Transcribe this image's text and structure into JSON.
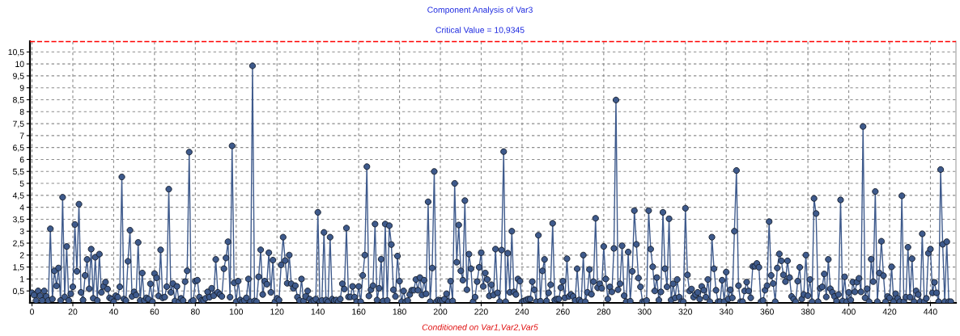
{
  "chart_data": {
    "type": "line",
    "title": "Component Analysis of Var3",
    "subtitle": "Critical Value = 10,9345",
    "annotations": [
      "Conditioned on Var1,Var2,Var5"
    ],
    "xlim": [
      -1,
      452.5
    ],
    "ylim": [
      0,
      10.95
    ],
    "xticks": [
      0,
      20,
      40,
      60,
      80,
      100,
      120,
      140,
      160,
      180,
      200,
      220,
      240,
      260,
      280,
      300,
      320,
      340,
      360,
      380,
      400,
      420,
      440
    ],
    "yticks": [
      {
        "value": 0.5,
        "label": "0,5"
      },
      1,
      {
        "value": 1.5,
        "label": "1,5"
      },
      2,
      {
        "value": 2.5,
        "label": "2,5"
      },
      3,
      {
        "value": 3.5,
        "label": "3,5"
      },
      4,
      {
        "value": 4.5,
        "label": "4,5"
      },
      5,
      {
        "value": 5.5,
        "label": "5,5"
      },
      6,
      {
        "value": 6.5,
        "label": "6,5"
      },
      7,
      {
        "value": 7.5,
        "label": "7,5"
      },
      8,
      {
        "value": 8.5,
        "label": "8,5"
      },
      9,
      {
        "value": 9.5,
        "label": "9,5"
      },
      10,
      {
        "value": 10.5,
        "label": "10,5"
      }
    ],
    "grid": true,
    "marker": "circle",
    "line_style": "solid",
    "ref_lines": [
      {
        "axis": "y",
        "value": 10.9345,
        "color": "#ff0000",
        "line_style": "dashed"
      }
    ],
    "series": [
      {
        "color": "#3e5a8c",
        "x": [
          0,
          1,
          2,
          3,
          4,
          5,
          6,
          7,
          8,
          9,
          10,
          11,
          12,
          13,
          14,
          15,
          16,
          17,
          18,
          19,
          20,
          21,
          22,
          23,
          24,
          25,
          26,
          27,
          28,
          29,
          30,
          31,
          32,
          33,
          34,
          35,
          36,
          37,
          38,
          39,
          40,
          41,
          42,
          43,
          44,
          45,
          46,
          47,
          48,
          49,
          50,
          51,
          52,
          53,
          54,
          55,
          56,
          57,
          58,
          59,
          60,
          61,
          62,
          63,
          64,
          65,
          66,
          67,
          68,
          69,
          70,
          71,
          72,
          73,
          74,
          75,
          76,
          77,
          78,
          79,
          80,
          81,
          82,
          83,
          84,
          85,
          86,
          87,
          88,
          89,
          90,
          91,
          92,
          93,
          94,
          95,
          96,
          97,
          98,
          99,
          100,
          101,
          102,
          103,
          104,
          105,
          106,
          107,
          108,
          109,
          110,
          111,
          112,
          113,
          114,
          115,
          116,
          117,
          118,
          119,
          120,
          121,
          122,
          123,
          124,
          125,
          126,
          127,
          128,
          129,
          130,
          131,
          132,
          133,
          134,
          135,
          136,
          137,
          138,
          139,
          140,
          141,
          142,
          143,
          144,
          145,
          146,
          147,
          148,
          149,
          150,
          151,
          152,
          153,
          154,
          155,
          156,
          157,
          158,
          159,
          160,
          161,
          162,
          163,
          164,
          165,
          166,
          167,
          168,
          169,
          170,
          171,
          172,
          173,
          174,
          175,
          176,
          177,
          178,
          179,
          180,
          181,
          182,
          183,
          184,
          185,
          186,
          187,
          188,
          189,
          190,
          191,
          192,
          193,
          194,
          195,
          196,
          197,
          198,
          199,
          200,
          201,
          202,
          203,
          204,
          205,
          206,
          207,
          208,
          209,
          210,
          211,
          212,
          213,
          214,
          215,
          216,
          217,
          218,
          219,
          220,
          221,
          222,
          223,
          224,
          225,
          226,
          227,
          228,
          229,
          230,
          231,
          232,
          233,
          234,
          235,
          236,
          237,
          238,
          239,
          240,
          241,
          242,
          243,
          244,
          245,
          246,
          247,
          248,
          249,
          250,
          251,
          252,
          253,
          254,
          255,
          256,
          257,
          258,
          259,
          260,
          261,
          262,
          263,
          264,
          265,
          266,
          267,
          268,
          269,
          270,
          271,
          272,
          273,
          274,
          275,
          276,
          277,
          278,
          279,
          280,
          281,
          282,
          283,
          284,
          285,
          286,
          287,
          288,
          289,
          290,
          291,
          292,
          293,
          294,
          295,
          296,
          297,
          298,
          299,
          300,
          301,
          302,
          303,
          304,
          305,
          306,
          307,
          308,
          309,
          310,
          311,
          312,
          313,
          314,
          315,
          316,
          317,
          318,
          319,
          320,
          321,
          322,
          323,
          324,
          325,
          326,
          327,
          328,
          329,
          330,
          331,
          332,
          333,
          334,
          335,
          336,
          337,
          338,
          339,
          340,
          341,
          342,
          343,
          344,
          345,
          346,
          347,
          348,
          349,
          350,
          351,
          352,
          353,
          354,
          355,
          356,
          357,
          358,
          359,
          360,
          361,
          362,
          363,
          364,
          365,
          366,
          367,
          368,
          369,
          370,
          371,
          372,
          373,
          374,
          375,
          376,
          377,
          378,
          379,
          380,
          381,
          382,
          383,
          384,
          385,
          386,
          387,
          388,
          389,
          390,
          391,
          392,
          393,
          394,
          395,
          396,
          397,
          398,
          399,
          400,
          401,
          402,
          403,
          404,
          405,
          406,
          407,
          408,
          409,
          410,
          411,
          412,
          413,
          414,
          415,
          416,
          417,
          418,
          419,
          420,
          421,
          422,
          423,
          424,
          425,
          426,
          427,
          428,
          429,
          430,
          431,
          432,
          433,
          434,
          435,
          436,
          437,
          438,
          439,
          440,
          441,
          442,
          443,
          444,
          445,
          446,
          447,
          448,
          449,
          450
        ],
        "values": [
          0.42,
          0.33,
          0.1,
          0.5,
          0.3,
          0.1,
          0.5,
          0.27,
          0.1,
          3.1,
          0.16,
          1.34,
          0.71,
          1.46,
          0.1,
          4.42,
          0.25,
          2.36,
          0.1,
          0.38,
          0.67,
          3.28,
          1.32,
          4.13,
          0.44,
          0.12,
          1.15,
          1.82,
          0.59,
          2.25,
          0.19,
          1.91,
          0.1,
          2.04,
          0.44,
          0.69,
          0.87,
          0.58,
          0.21,
          0.16,
          0.05,
          0.3,
          0.24,
          0.67,
          5.27,
          0.16,
          0.1,
          1.74,
          3.04,
          0.27,
          0.46,
          0.33,
          2.53,
          0.1,
          1.25,
          0.1,
          0.21,
          0.16,
          0.8,
          0.05,
          1.23,
          1.05,
          0.29,
          2.22,
          0.21,
          0.24,
          0.68,
          4.76,
          0.44,
          0.81,
          0.08,
          0.69,
          0.05,
          0.19,
          0.1,
          0.89,
          1.34,
          6.31,
          0.05,
          0.1,
          0.91,
          0.95,
          0.24,
          0.1,
          0.1,
          0.19,
          0.46,
          0.24,
          0.61,
          0.3,
          1.82,
          0.44,
          0.35,
          0.27,
          1.43,
          1.88,
          2.56,
          0.24,
          6.57,
          0.84,
          0.05,
          0.91,
          0.12,
          0.05,
          0.1,
          0.21,
          1.0,
          0.05,
          9.92,
          0.08,
          0.05,
          1.09,
          2.22,
          0.35,
          0.91,
          0.78,
          2.1,
          0.44,
          1.79,
          0.05,
          0.19,
          0.12,
          1.59,
          2.75,
          1.77,
          0.82,
          2.0,
          0.8,
          0.61,
          0.72,
          0.24,
          0.1,
          1.0,
          0.08,
          0.27,
          0.5,
          0.16,
          0.05,
          0.1,
          0.16,
          3.79,
          0.05,
          0.1,
          2.95,
          0.12,
          0.05,
          2.75,
          0.16,
          0.1,
          0.12,
          0.05,
          0.16,
          0.8,
          0.58,
          3.13,
          0.25,
          0.25,
          0.69,
          0.24,
          0.05,
          0.69,
          0.05,
          1.15,
          2.0,
          5.7,
          0.29,
          0.55,
          0.72,
          3.3,
          0.12,
          0.61,
          1.83,
          0.08,
          3.3,
          0.1,
          3.23,
          2.44,
          0.55,
          0.27,
          1.96,
          0.91,
          0.05,
          0.5,
          0.05,
          0.1,
          0.35,
          0.53,
          0.53,
          0.98,
          0.53,
          1.06,
          0.33,
          0.95,
          0.38,
          4.23,
          0.05,
          1.46,
          5.5,
          0.05,
          0.12,
          0.1,
          0.1,
          0.16,
          0.38,
          0.05,
          0.91,
          0.08,
          5.0,
          1.7,
          3.26,
          1.34,
          0.95,
          4.28,
          0.55,
          2.04,
          1.43,
          0.05,
          0.24,
          0.89,
          1.49,
          2.1,
          0.69,
          1.25,
          0.98,
          0.29,
          0.76,
          0.33,
          2.25,
          0.42,
          0.05,
          2.21,
          6.33,
          0.05,
          2.08,
          0.44,
          3.0,
          0.46,
          0.35,
          1.0,
          0.91,
          0.05,
          0.08,
          0.12,
          0.16,
          0.16,
          0.89,
          0.55,
          0.05,
          2.83,
          0.07,
          1.34,
          1.82,
          0.08,
          0.42,
          0.76,
          3.33,
          0.12,
          0.16,
          0.16,
          0.64,
          0.91,
          0.21,
          1.85,
          0.27,
          0.35,
          0.27,
          0.1,
          1.43,
          0.12,
          0.05,
          2.0,
          0.05,
          0.44,
          1.4,
          0.36,
          0.89,
          3.54,
          0.64,
          0.8,
          0.61,
          2.36,
          1.0,
          0.16,
          0.67,
          0.46,
          2.28,
          8.49,
          0.55,
          0.8,
          2.39,
          0.3,
          0.05,
          2.13,
          0.07,
          1.32,
          3.86,
          2.45,
          1.04,
          0.67,
          0.05,
          0.05,
          0.1,
          3.86,
          2.25,
          1.51,
          0.5,
          1.06,
          0.12,
          0.46,
          3.79,
          1.43,
          0.67,
          3.52,
          0.12,
          0.8,
          0.21,
          0.98,
          0.24,
          0.05,
          0.05,
          3.96,
          1.17,
          0.5,
          0.58,
          0.24,
          0.35,
          0.44,
          0.16,
          0.69,
          0.53,
          0.24,
          0.98,
          0.05,
          2.75,
          1.43,
          0.53,
          0.05,
          0.05,
          0.95,
          0.05,
          1.29,
          0.16,
          0.55,
          0.21,
          3.0,
          5.54,
          0.72,
          0.05,
          0.05,
          0.5,
          0.87,
          0.5,
          0.21,
          1.53,
          1.53,
          1.65,
          1.49,
          0.05,
          0.1,
          0.53,
          0.72,
          3.4,
          1.15,
          0.81,
          0.05,
          1.46,
          2.05,
          1.76,
          1.17,
          0.89,
          1.76,
          1.06,
          0.27,
          0.16,
          0.05,
          0.91,
          1.49,
          0.16,
          0.35,
          2.0,
          0.3,
          0.98,
          0.05,
          4.37,
          3.74,
          0.05,
          0.61,
          0.67,
          1.21,
          0.25,
          1.82,
          0.59,
          0.44,
          0.27,
          0.08,
          0.35,
          4.31,
          0.08,
          1.09,
          0.05,
          0.44,
          0.12,
          0.87,
          0.46,
          0.87,
          1.03,
          0.46,
          7.38,
          0.21,
          0.59,
          0.05,
          1.83,
          0.89,
          4.66,
          0.05,
          1.25,
          2.58,
          1.14,
          0.05,
          0.27,
          0.21,
          1.51,
          0.05,
          0.38,
          0.19,
          0.05,
          4.48,
          0.05,
          0.24,
          2.33,
          0.24,
          1.85,
          0.05,
          0.5,
          0.35,
          0.05,
          2.89,
          0.05,
          0.19,
          2.08,
          2.25,
          0.42,
          0.86,
          0.42,
          0.05,
          5.58,
          2.45,
          0.05,
          2.56,
          0.05,
          0.05
        ]
      }
    ]
  }
}
